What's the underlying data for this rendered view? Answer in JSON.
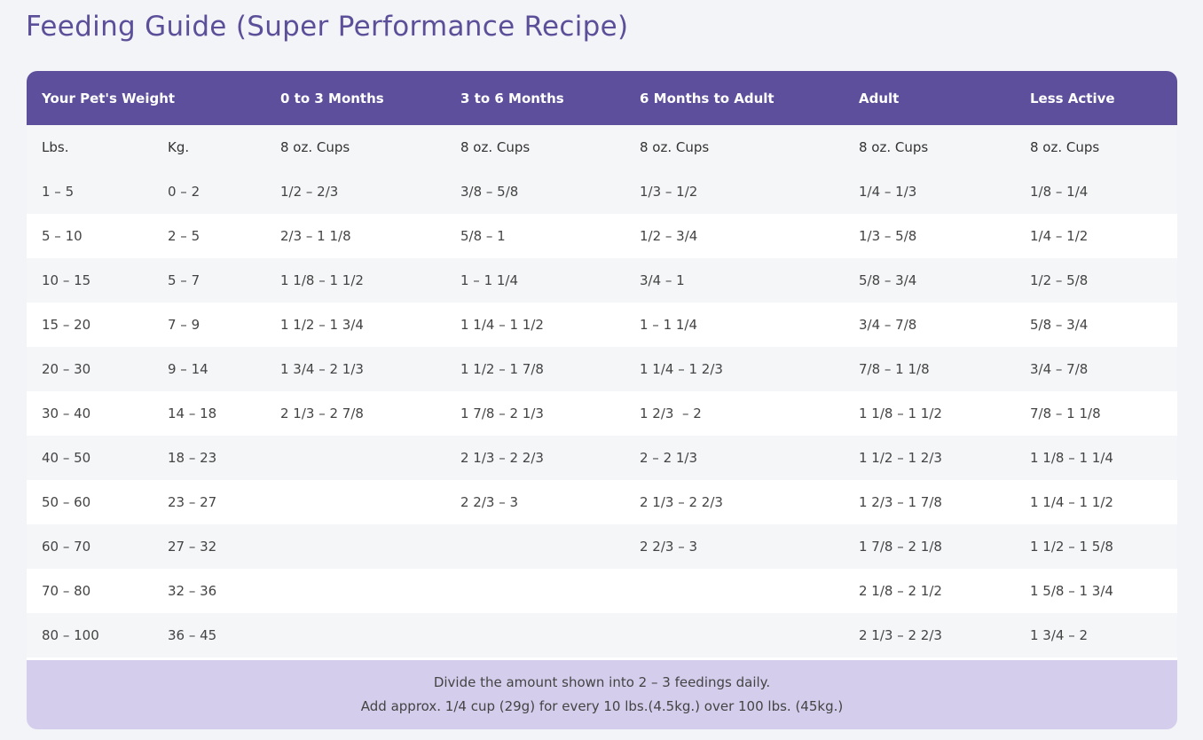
{
  "header": {
    "title": "Feeding Guide (Super Performance Recipe)"
  },
  "table": {
    "head": [
      "Your Pet's Weight",
      "0 to 3 Months",
      "3 to 6 Months",
      "6 Months to Adult",
      "Adult",
      "Less Active"
    ],
    "subhead": [
      "Lbs.",
      "Kg.",
      "8 oz. Cups",
      "8 oz. Cups",
      "8 oz. Cups",
      "8 oz. Cups",
      "8 oz. Cups"
    ],
    "rows": [
      [
        "1 – 5",
        "0 – 2",
        "1/2 – 2/3",
        "3/8 – 5/8",
        "1/3 – 1/2",
        "1/4 – 1/3",
        "1/8 – 1/4"
      ],
      [
        "5 – 10",
        "2 – 5",
        "2/3 – 1 1/8",
        "5/8 – 1",
        "1/2 – 3/4",
        "1/3 – 5/8",
        "1/4 – 1/2"
      ],
      [
        "10 – 15",
        "5 – 7",
        "1 1/8 – 1 1/2",
        "1 – 1 1/4",
        "3/4 – 1",
        "5/8 – 3/4",
        "1/2 – 5/8"
      ],
      [
        "15 – 20",
        "7 – 9",
        "1 1/2 – 1 3/4",
        "1 1/4 – 1 1/2",
        "1 – 1 1/4",
        "3/4 – 7/8",
        "5/8 – 3/4"
      ],
      [
        "20 – 30",
        "9 – 14",
        "1 3/4 – 2 1/3",
        "1 1/2 – 1 7/8",
        "1 1/4 – 1 2/3",
        "7/8 – 1 1/8",
        "3/4 – 7/8"
      ],
      [
        "30 – 40",
        "14 – 18",
        "2 1/3 – 2 7/8",
        "1 7/8 – 2 1/3",
        "1 2/3  – 2",
        "1 1/8 – 1 1/2",
        "7/8 – 1 1/8"
      ],
      [
        "40 – 50",
        "18 – 23",
        null,
        "2 1/3 – 2 2/3",
        "2 – 2 1/3",
        "1 1/2 – 1 2/3",
        "1 1/8 – 1 1/4"
      ],
      [
        "50 – 60",
        "23 – 27",
        null,
        "2 2/3 – 3",
        "2 1/3 – 2 2/3",
        "1 2/3 – 1 7/8",
        "1 1/4 – 1 1/2"
      ],
      [
        "60 – 70",
        "27 – 32",
        null,
        null,
        "2 2/3 – 3",
        "1 7/8 – 2 1/8",
        "1 1/2 – 1 5/8"
      ],
      [
        "70 – 80",
        "32 – 36",
        null,
        null,
        null,
        "2 1/8 – 2 1/2",
        "1 5/8 – 1 3/4"
      ],
      [
        "80 – 100",
        "36 – 45",
        null,
        null,
        null,
        "2 1/3 – 2 2/3",
        "1 3/4 – 2"
      ]
    ],
    "footer": [
      "Divide the amount shown into 2 – 3 feedings daily.",
      "Add approx. 1/4 cup (29g) for every 10 lbs.(4.5kg.) over 100 lbs. (45kg.)"
    ]
  }
}
